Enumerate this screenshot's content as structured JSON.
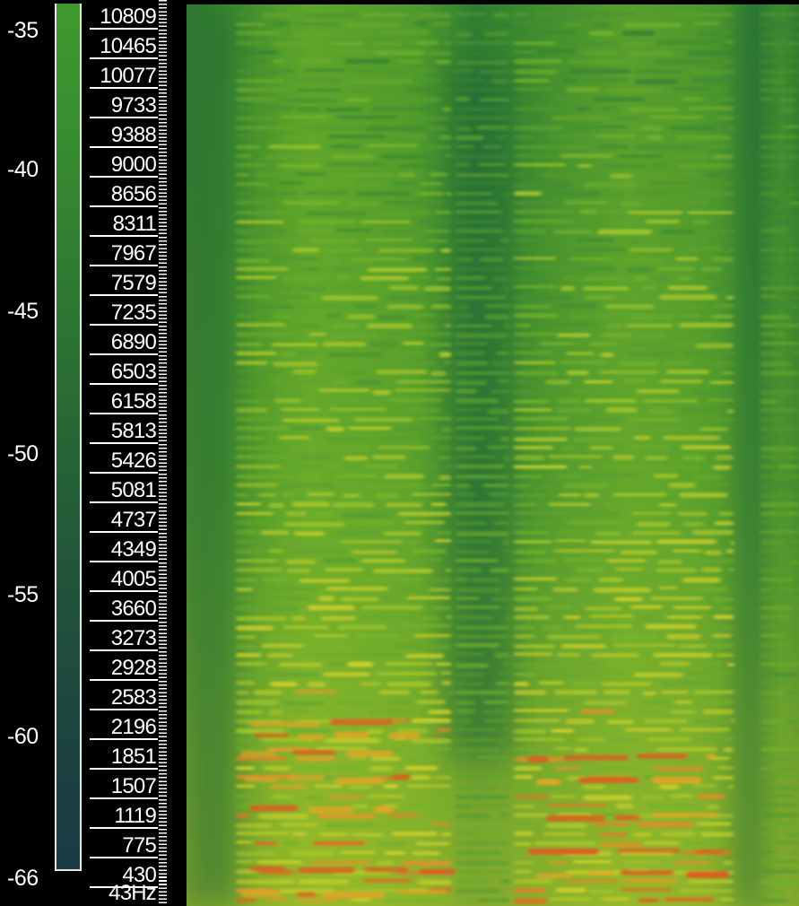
{
  "db_scale": {
    "labels": [
      "-35",
      "-40",
      "-45",
      "-50",
      "-55",
      "-60",
      "-66"
    ]
  },
  "frequency_scale": {
    "labels": [
      "10809",
      "10465",
      "10077",
      "9733",
      "9388",
      "9000",
      "8656",
      "8311",
      "7967",
      "7579",
      "7235",
      "6890",
      "6503",
      "6158",
      "5813",
      "5426",
      "5081",
      "4737",
      "4349",
      "4005",
      "3660",
      "3273",
      "2928",
      "2583",
      "2196",
      "1851",
      "1507",
      "1119",
      "775",
      "430",
      "43Hz"
    ]
  },
  "colors": {
    "background": "#000000",
    "scale_text": "#ffffff",
    "low_level": "#1b3a44",
    "mid_level": "#3f9a2e",
    "high_level": "#d8d22a",
    "peak_level": "#e2581e"
  }
}
